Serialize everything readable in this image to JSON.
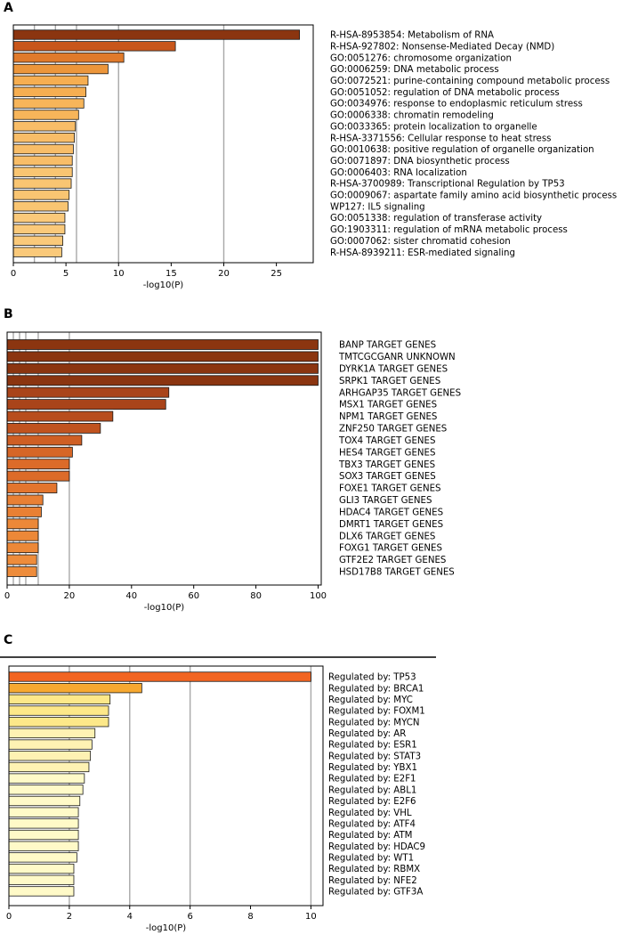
{
  "panels": [
    {
      "letter": "A",
      "chart_data": {
        "type": "bar",
        "orientation": "horizontal",
        "xlabel": "-log10(P)",
        "xlim": [
          0,
          28.5
        ],
        "xticks": [
          0,
          5,
          10,
          15,
          20,
          25
        ],
        "gridlines": [
          2,
          4,
          6,
          10,
          20
        ],
        "categories": [
          "R-HSA-8953854: Metabolism of RNA",
          "R-HSA-927802: Nonsense-Mediated Decay (NMD)",
          "GO:0051276: chromosome organization",
          "GO:0006259: DNA metabolic process",
          "GO:0072521: purine-containing compound metabolic process",
          "GO:0051052: regulation of DNA metabolic process",
          "GO:0034976: response to endoplasmic reticulum stress",
          "GO:0006338: chromatin remodeling",
          "GO:0033365: protein localization to organelle",
          "R-HSA-3371556: Cellular response to heat stress",
          "GO:0010638: positive regulation of organelle organization",
          "GO:0071897: DNA biosynthetic process",
          "GO:0006403: RNA localization",
          "R-HSA-3700989: Transcriptional Regulation by TP53",
          "GO:0009067: aspartate family amino acid biosynthetic process",
          "WP127: IL5 signaling",
          "GO:0051338: regulation of transferase activity",
          "GO:1903311: regulation of mRNA metabolic process",
          "GO:0007062: sister chromatid cohesion",
          "R-HSA-8939211: ESR-mediated signaling"
        ],
        "values": [
          27.2,
          15.4,
          10.5,
          9.0,
          7.1,
          6.9,
          6.7,
          6.2,
          5.9,
          5.8,
          5.7,
          5.6,
          5.6,
          5.5,
          5.3,
          5.2,
          4.9,
          4.9,
          4.7,
          4.6
        ],
        "colors": [
          "#8b3510",
          "#c8561b",
          "#e07a2b",
          "#ec963b",
          "#f6ae51",
          "#f6ae51",
          "#f7b55a",
          "#f7b55a",
          "#f8bd68",
          "#f8bd68",
          "#f8bd68",
          "#f8bd68",
          "#f9c572",
          "#f9c572",
          "#f9c572",
          "#f9c572",
          "#fac97a",
          "#fac97a",
          "#fac97a",
          "#fac97a"
        ]
      }
    },
    {
      "letter": "B",
      "chart_data": {
        "type": "bar",
        "orientation": "horizontal",
        "xlabel": "-log10(P)",
        "xlim": [
          0,
          101
        ],
        "xticks": [
          0,
          20,
          40,
          60,
          80,
          100
        ],
        "gridlines": [
          2,
          4,
          6,
          10,
          20
        ],
        "categories": [
          "BANP TARGET GENES",
          "TMTCGCGANR UNKNOWN",
          "DYRK1A TARGET GENES",
          "SRPK1 TARGET GENES",
          "ARHGAP35 TARGET GENES",
          "MSX1 TARGET GENES",
          "NPM1 TARGET GENES",
          "ZNF250 TARGET GENES",
          "TOX4 TARGET GENES",
          "HES4 TARGET GENES",
          "TBX3 TARGET GENES",
          "SOX3 TARGET GENES",
          "FOXE1 TARGET GENES",
          "GLI3 TARGET GENES",
          "HDAC4 TARGET GENES",
          "DMRT1 TARGET GENES",
          "DLX6 TARGET GENES",
          "FOXG1 TARGET GENES",
          "GTF2E2 TARGET GENES",
          "HSD17B8 TARGET GENES"
        ],
        "values": [
          100,
          100,
          100,
          100,
          52,
          51,
          34,
          30,
          24,
          21,
          20,
          20,
          16,
          11.5,
          11,
          10,
          10,
          10,
          9.5,
          9.5
        ],
        "colors": [
          "#8b3510",
          "#8b3510",
          "#8b3510",
          "#8b3510",
          "#a9441a",
          "#a9441a",
          "#b84d1d",
          "#c0531f",
          "#cf5f24",
          "#d66627",
          "#dc6b29",
          "#dc6b29",
          "#e3752e",
          "#e98034",
          "#e98034",
          "#ec8838",
          "#ec8838",
          "#ec8838",
          "#ee8c3b",
          "#ee8c3b"
        ]
      }
    },
    {
      "letter": "C",
      "chart_data": {
        "type": "bar",
        "orientation": "horizontal",
        "xlabel": "-log10(P)",
        "xlim": [
          0,
          10.4
        ],
        "xticks": [
          0,
          2,
          4,
          6,
          8,
          10
        ],
        "gridlines": [
          2,
          4,
          6,
          10
        ],
        "categories": [
          "Regulated by: TP53",
          "Regulated by: BRCA1",
          "Regulated by: MYC",
          "Regulated by: FOXM1",
          "Regulated by: MYCN",
          "Regulated by: AR",
          "Regulated by: ESR1",
          "Regulated by: STAT3",
          "Regulated by: YBX1",
          "Regulated by: E2F1",
          "Regulated by: ABL1",
          "Regulated by: E2F6",
          "Regulated by: VHL",
          "Regulated by: ATF4",
          "Regulated by: ATM",
          "Regulated by: HDAC9",
          "Regulated by: WT1",
          "Regulated by: RBMX",
          "Regulated by: NFE2",
          "Regulated by: GTF3A"
        ],
        "values": [
          10.0,
          4.4,
          3.35,
          3.3,
          3.3,
          2.85,
          2.75,
          2.7,
          2.65,
          2.5,
          2.45,
          2.35,
          2.3,
          2.3,
          2.3,
          2.3,
          2.25,
          2.15,
          2.15,
          2.15
        ],
        "colors": [
          "#f26522",
          "#f7a830",
          "#fde889",
          "#fde889",
          "#fde889",
          "#fef2b3",
          "#fef2b3",
          "#fef2b3",
          "#fef2b3",
          "#fffac8",
          "#fffac8",
          "#fffac8",
          "#fffac8",
          "#fffac8",
          "#fffac8",
          "#fffac8",
          "#fffac8",
          "#fffac8",
          "#fffac8",
          "#fffac8"
        ]
      }
    }
  ]
}
